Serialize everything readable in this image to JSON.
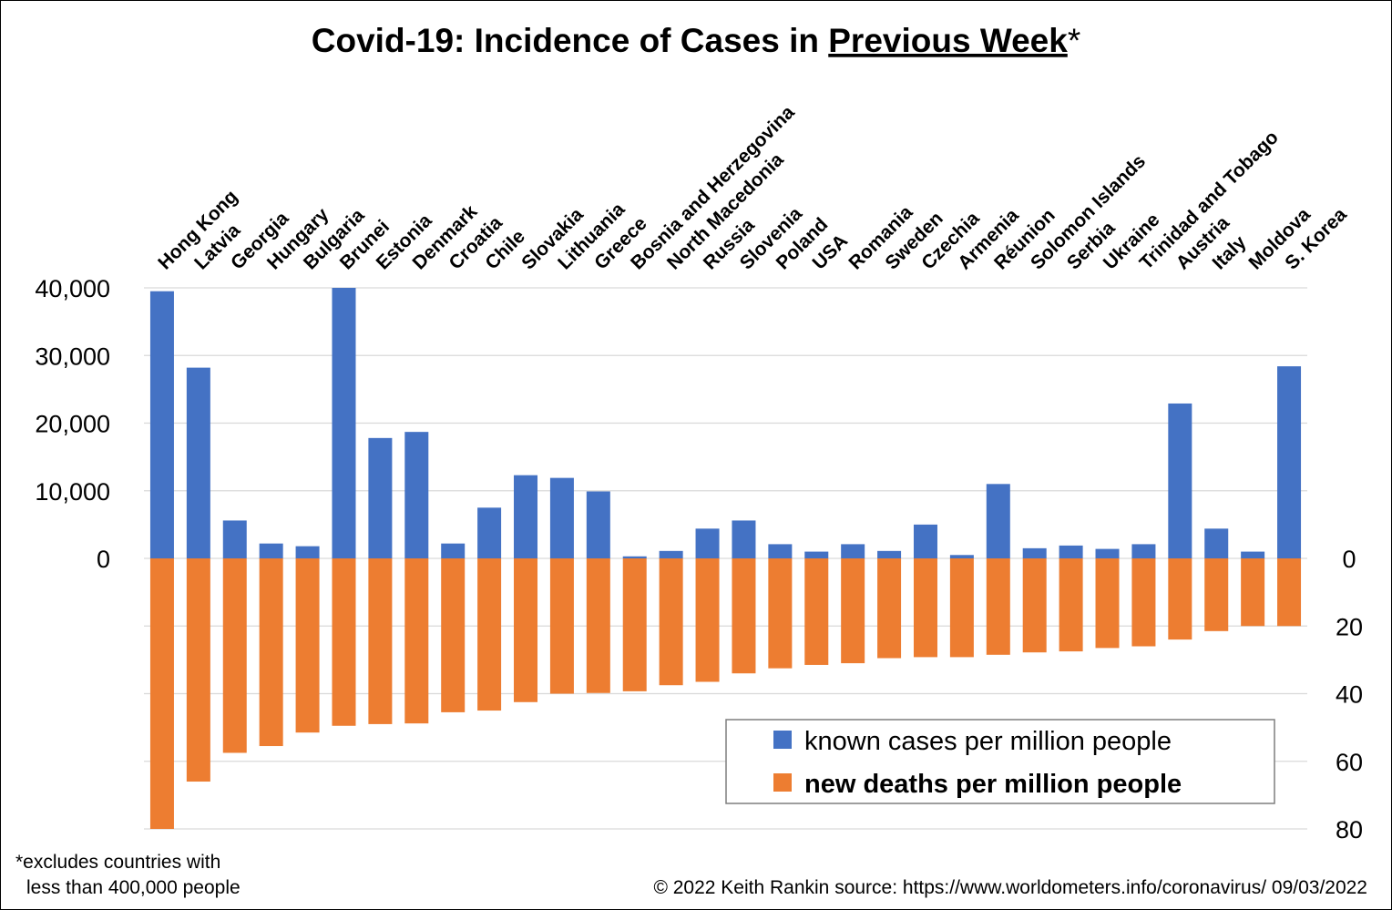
{
  "chart_data": {
    "type": "bar",
    "title": "Covid-19: Incidence of Cases in ",
    "title_emphasis": "Previous Week",
    "title_suffix": "*",
    "categories": [
      "Hong Kong",
      "Latvia",
      "Georgia",
      "Hungary",
      "Bulgaria",
      "Brunei",
      "Estonia",
      "Denmark",
      "Croatia",
      "Chile",
      "Slovakia",
      "Lithuania",
      "Greece",
      "Bosnia and Herzegovina",
      "North Macedonia",
      "Russia",
      "Slovenia",
      "Poland",
      "USA",
      "Romania",
      "Sweden",
      "Czechia",
      "Armenia",
      "Réunion",
      "Solomon Islands",
      "Serbia",
      "Ukraine",
      "Trinidad and Tobago",
      "Austria",
      "Italy",
      "Moldova",
      "S. Korea"
    ],
    "series": [
      {
        "name": "known cases per million people",
        "axis": "left",
        "color": "#4472C4",
        "values": [
          39500,
          28200,
          5600,
          2200,
          1800,
          40000,
          17800,
          18700,
          2200,
          7500,
          12300,
          11900,
          9900,
          300,
          1100,
          4400,
          5600,
          2100,
          1000,
          2100,
          1100,
          5000,
          500,
          11000,
          1500,
          1900,
          1400,
          2100,
          22900,
          4400,
          1000,
          28400
        ]
      },
      {
        "name": "new deaths per million people",
        "axis": "right",
        "color": "#ED7D31",
        "values": [
          80,
          66,
          57.5,
          55.5,
          51.5,
          49.5,
          49,
          48.8,
          45.5,
          45,
          42.5,
          40,
          39.8,
          39.3,
          37.5,
          36.5,
          34,
          32.5,
          31.5,
          31,
          29.5,
          29.2,
          29.2,
          28.5,
          27.8,
          27.5,
          26.5,
          26,
          24,
          21.5,
          20,
          20
        ]
      }
    ],
    "y_left": {
      "ticks": [
        "40,000",
        "30,000",
        "20,000",
        "10,000",
        "0"
      ],
      "range": [
        -40000,
        40000
      ]
    },
    "y_right": {
      "ticks": [
        "0",
        "20",
        "40",
        "60",
        "80"
      ],
      "range": [
        80,
        -80
      ],
      "inverted": true
    },
    "grid": true,
    "legend_position": "bottom-right"
  },
  "footer": {
    "note_line1": "*excludes countries with",
    "note_line2": "less than 400,000  people",
    "credit": "© 2022   Keith Rankin      source: https://www.worldometers.info/coronavirus/     09/03/2022"
  }
}
